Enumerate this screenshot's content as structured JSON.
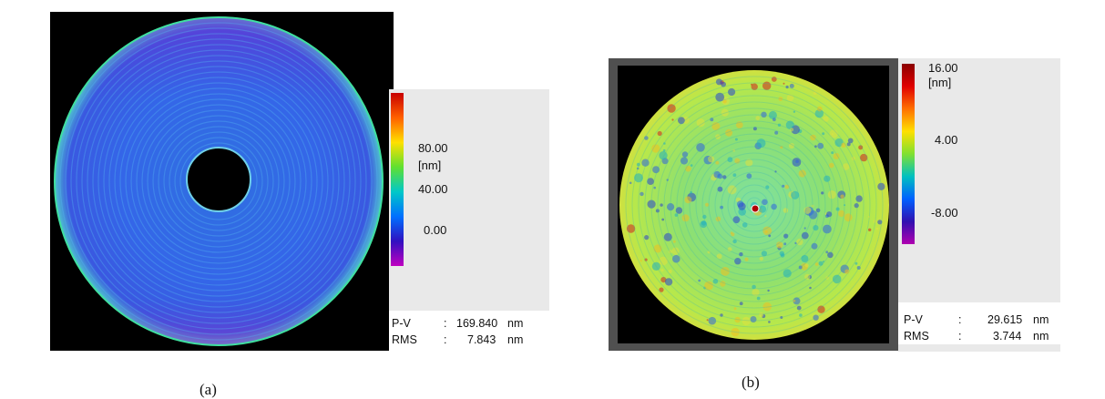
{
  "figure_a": {
    "colorbar": {
      "ticks": [
        "80.00",
        "[nm]",
        "40.00",
        "0.00"
      ]
    },
    "stats": [
      {
        "name": "P-V",
        "sep": ":",
        "value": "169.840",
        "unit": "nm"
      },
      {
        "name": "RMS",
        "sep": ":",
        "value": "7.843",
        "unit": "nm"
      }
    ],
    "caption": "(a)"
  },
  "figure_b": {
    "colorbar": {
      "ticks": [
        "16.00",
        "[nm]",
        "4.00",
        "-8.00"
      ]
    },
    "stats": [
      {
        "name": "P-V",
        "sep": ":",
        "value": "29.615",
        "unit": "nm"
      },
      {
        "name": "RMS",
        "sep": ":",
        "value": "3.744",
        "unit": "nm"
      }
    ],
    "caption": "(b)"
  },
  "colors": {
    "colormap": [
      "#ff00ff",
      "#2a1fd0",
      "#0080ff",
      "#00d0d0",
      "#30e030",
      "#ffff00",
      "#ff8000",
      "#c80000"
    ]
  }
}
